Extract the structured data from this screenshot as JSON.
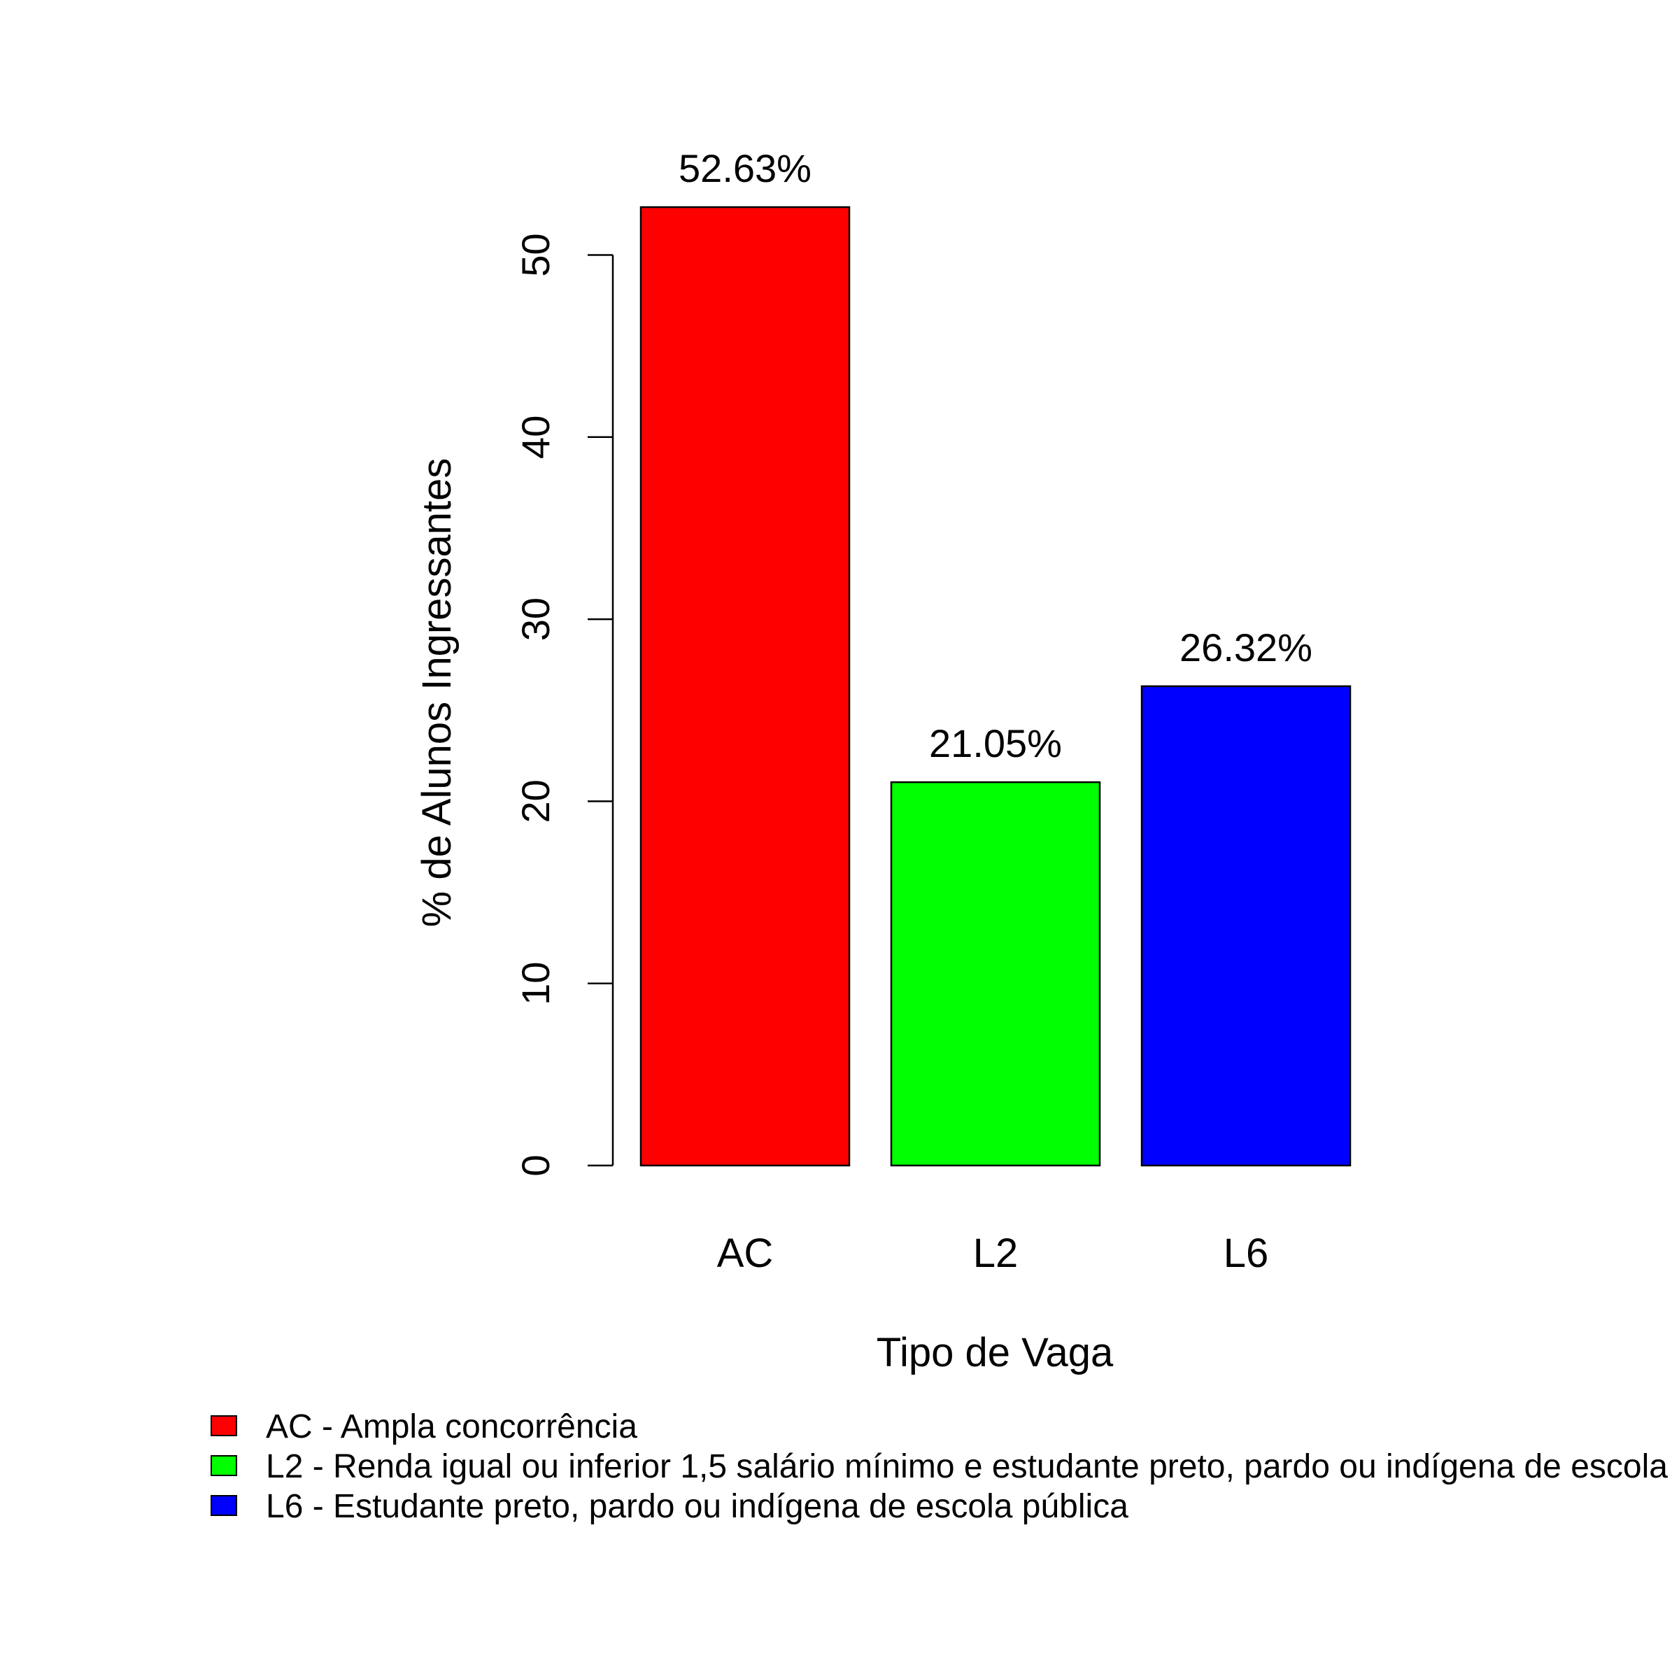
{
  "chart_data": {
    "type": "bar",
    "categories": [
      "AC",
      "L2",
      "L6"
    ],
    "values": [
      52.63,
      21.05,
      26.32
    ],
    "value_labels": [
      "52.63%",
      "21.05%",
      "26.32%"
    ],
    "colors": [
      "#ff0000",
      "#00ff00",
      "#0000ff"
    ],
    "xlabel": "Tipo de Vaga",
    "ylabel": "% de Alunos Ingressantes",
    "ylim": [
      0,
      55
    ],
    "yticks": [
      0,
      10,
      20,
      30,
      40,
      50
    ],
    "grid": false,
    "legend": {
      "placement": "bottom-left",
      "entries": [
        {
          "label": "AC - Ampla concorrência",
          "color": "#ff0000"
        },
        {
          "label": "L2 - Renda igual ou inferior 1,5 salário mínimo e estudante preto, pardo ou indígena de escola",
          "color": "#00ff00"
        },
        {
          "label": "L6 - Estudante preto, pardo ou indígena de escola pública",
          "color": "#0000ff"
        }
      ]
    }
  }
}
